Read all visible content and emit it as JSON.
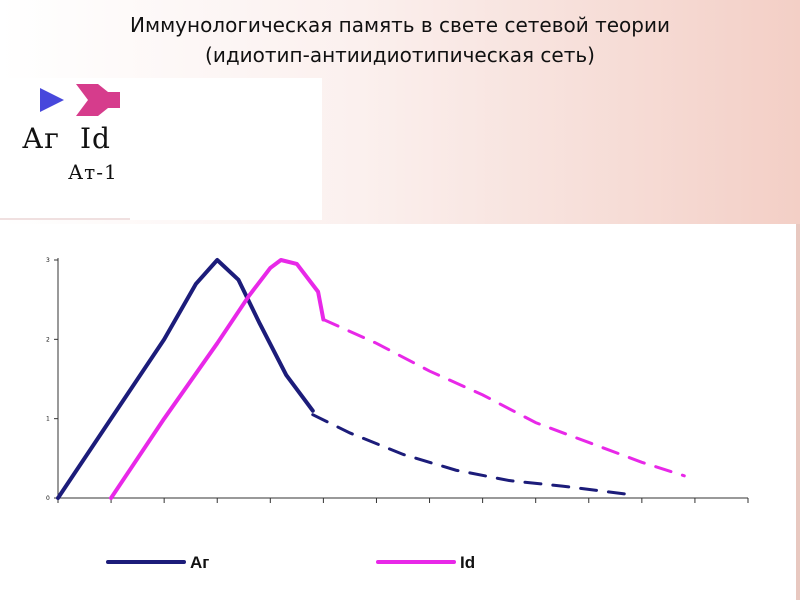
{
  "title_line1": "Иммунологическая память в свете сетевой теории",
  "title_line2": "(идиотип-антиидиотипическая сеть)",
  "key": {
    "ag_label": "Аг",
    "id_label": "Id",
    "at1_label": "Ат-1",
    "ag_color": "#4848dc",
    "id_color": "#d63c8c"
  },
  "chart_data": {
    "type": "line",
    "title": "",
    "xlabel": "",
    "ylabel": "",
    "x_ticks": 13,
    "xlim": [
      0,
      13
    ],
    "ylim": [
      0,
      3
    ],
    "yticks": [
      "0",
      "1",
      "2",
      "3"
    ],
    "grid": false,
    "legend_position": "bottom",
    "series": [
      {
        "name": "Аг",
        "color": "#1c1c7a",
        "solid": [
          [
            0,
            0
          ],
          [
            1,
            1
          ],
          [
            2,
            2
          ],
          [
            2.6,
            2.7
          ],
          [
            3,
            3
          ],
          [
            3.4,
            2.75
          ],
          [
            3.8,
            2.2
          ],
          [
            4.3,
            1.55
          ],
          [
            4.8,
            1.1
          ]
        ],
        "dashed": [
          [
            4.8,
            1.05
          ],
          [
            5.5,
            0.82
          ],
          [
            6.5,
            0.55
          ],
          [
            7.5,
            0.35
          ],
          [
            8.5,
            0.22
          ],
          [
            9.5,
            0.15
          ],
          [
            10.7,
            0.05
          ]
        ]
      },
      {
        "name": "Id",
        "color": "#e828e8",
        "solid": [
          [
            1,
            0
          ],
          [
            2,
            1
          ],
          [
            3,
            1.95
          ],
          [
            3.6,
            2.55
          ],
          [
            4,
            2.9
          ],
          [
            4.2,
            3
          ],
          [
            4.5,
            2.95
          ],
          [
            4.9,
            2.6
          ],
          [
            5,
            2.25
          ]
        ],
        "dashed": [
          [
            5,
            2.25
          ],
          [
            6,
            1.95
          ],
          [
            7,
            1.6
          ],
          [
            8,
            1.3
          ],
          [
            9,
            0.95
          ],
          [
            10,
            0.7
          ],
          [
            11,
            0.45
          ],
          [
            11.8,
            0.28
          ]
        ]
      }
    ]
  }
}
